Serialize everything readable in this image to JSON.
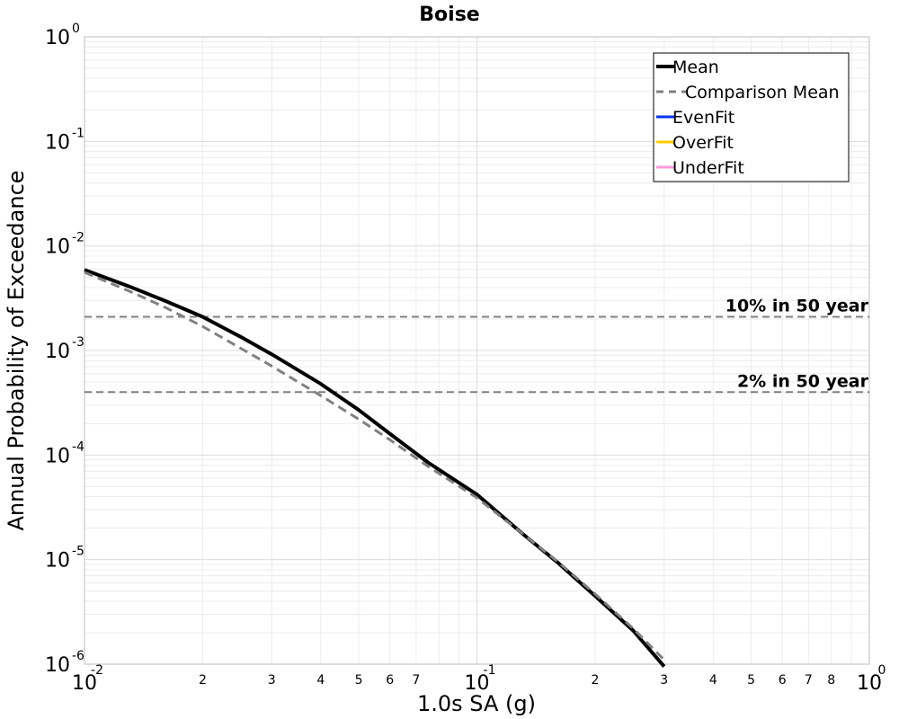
{
  "chart_data": {
    "type": "line",
    "title": "Boise",
    "xlabel": "1.0s SA (g)",
    "ylabel": "Annual Probability of Exceedance",
    "x_scale": "log",
    "y_scale": "log",
    "xlim": [
      0.01,
      1
    ],
    "ylim": [
      1e-06,
      1
    ],
    "grid": true,
    "legend_position": "top-right",
    "x_major_ticks": [
      {
        "value": 0.01,
        "base": "10",
        "exp": "-2"
      },
      {
        "value": 0.1,
        "base": "10",
        "exp": "-1"
      },
      {
        "value": 1,
        "base": "10",
        "exp": "0"
      }
    ],
    "y_major_ticks": [
      {
        "value": 1,
        "base": "10",
        "exp": "0"
      },
      {
        "value": 0.1,
        "base": "10",
        "exp": "-1"
      },
      {
        "value": 0.01,
        "base": "10",
        "exp": "-2"
      },
      {
        "value": 0.001,
        "base": "10",
        "exp": "-3"
      },
      {
        "value": 0.0001,
        "base": "10",
        "exp": "-4"
      },
      {
        "value": 1e-05,
        "base": "10",
        "exp": "-5"
      },
      {
        "value": 1e-06,
        "base": "10",
        "exp": "-6"
      }
    ],
    "x_minor_ticks": [
      {
        "value": 0.02,
        "label": "2"
      },
      {
        "value": 0.03,
        "label": "3"
      },
      {
        "value": 0.04,
        "label": "4"
      },
      {
        "value": 0.05,
        "label": "5"
      },
      {
        "value": 0.06,
        "label": "6"
      },
      {
        "value": 0.07,
        "label": "7"
      },
      {
        "value": 0.2,
        "label": "2"
      },
      {
        "value": 0.3,
        "label": "3"
      },
      {
        "value": 0.4,
        "label": "4"
      },
      {
        "value": 0.5,
        "label": "5"
      },
      {
        "value": 0.6,
        "label": "6"
      },
      {
        "value": 0.7,
        "label": "7"
      },
      {
        "value": 0.8,
        "label": "8"
      }
    ],
    "series": [
      {
        "name": "Mean",
        "color": "#000000",
        "style": "solid",
        "x": [
          0.01,
          0.013,
          0.016,
          0.02,
          0.025,
          0.03,
          0.035,
          0.04,
          0.05,
          0.06,
          0.075,
          0.1,
          0.13,
          0.16,
          0.2,
          0.25,
          0.3
        ],
        "y": [
          0.0059,
          0.0041,
          0.003,
          0.0021,
          0.00135,
          0.00092,
          0.00065,
          0.00048,
          0.00027,
          0.00016,
          8.5e-05,
          4.2e-05,
          1.8e-05,
          9.5e-06,
          4.5e-06,
          2.1e-06,
          9.5e-07
        ]
      },
      {
        "name": "Comparison Mean",
        "color": "#808080",
        "style": "dashed",
        "x": [
          0.01,
          0.013,
          0.016,
          0.02,
          0.025,
          0.03,
          0.035,
          0.04,
          0.05,
          0.06,
          0.075,
          0.1,
          0.13,
          0.16,
          0.2,
          0.25,
          0.3
        ],
        "y": [
          0.0056,
          0.0037,
          0.0026,
          0.0017,
          0.00105,
          0.00071,
          0.0005,
          0.00037,
          0.00022,
          0.00014,
          7.8e-05,
          3.9e-05,
          1.8e-05,
          9.7e-06,
          4.7e-06,
          2.2e-06,
          1.1e-06
        ]
      },
      {
        "name": "EvenFit",
        "color": "#0033ee",
        "style": "solid",
        "x": [],
        "y": []
      },
      {
        "name": "OverFit",
        "color": "#ffcc00",
        "style": "solid",
        "x": [],
        "y": []
      },
      {
        "name": "UnderFit",
        "color": "#ff99dd",
        "style": "solid",
        "x": [],
        "y": []
      }
    ],
    "annotations": [
      {
        "label": "10% in 50 year",
        "y": 0.0021
      },
      {
        "label": "2% in 50 year",
        "y": 0.0004
      }
    ]
  }
}
